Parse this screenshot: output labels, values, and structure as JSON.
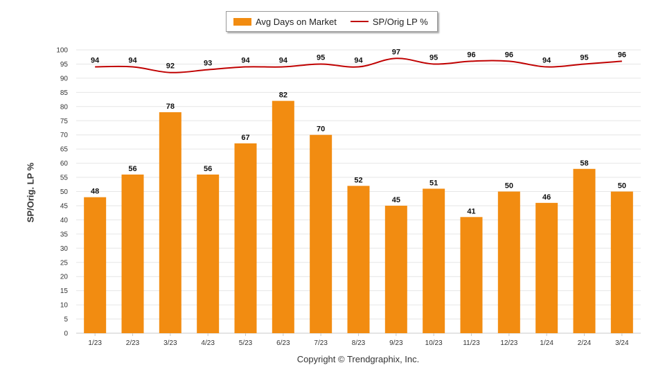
{
  "legend": {
    "bars_label": "Avg Days on Market",
    "line_label": "SP/Orig LP %"
  },
  "copyright": "Copyright © Trendgraphix, Inc.",
  "chart_data": {
    "type": "bar",
    "categories": [
      "1/23",
      "2/23",
      "3/23",
      "4/23",
      "5/23",
      "6/23",
      "7/23",
      "8/23",
      "9/23",
      "10/23",
      "11/23",
      "12/23",
      "1/24",
      "2/24",
      "3/24"
    ],
    "series": [
      {
        "name": "Avg Days on Market",
        "type": "bar",
        "color": "#F28C11",
        "values": [
          48,
          56,
          78,
          56,
          67,
          82,
          70,
          52,
          45,
          51,
          41,
          50,
          46,
          58,
          50
        ]
      },
      {
        "name": "SP/Orig LP %",
        "type": "line",
        "color": "#C00000",
        "values": [
          94,
          94,
          92,
          93,
          94,
          94,
          95,
          94,
          97,
          95,
          96,
          96,
          94,
          95,
          96
        ]
      }
    ],
    "ylabel": "SP/Orig. LP %",
    "xlabel": "",
    "ylim": [
      0,
      100
    ],
    "yticks": [
      0,
      5,
      10,
      15,
      20,
      25,
      30,
      35,
      40,
      45,
      50,
      55,
      60,
      65,
      70,
      75,
      80,
      85,
      90,
      95,
      100
    ],
    "grid": true,
    "legend_position": "top-center"
  }
}
